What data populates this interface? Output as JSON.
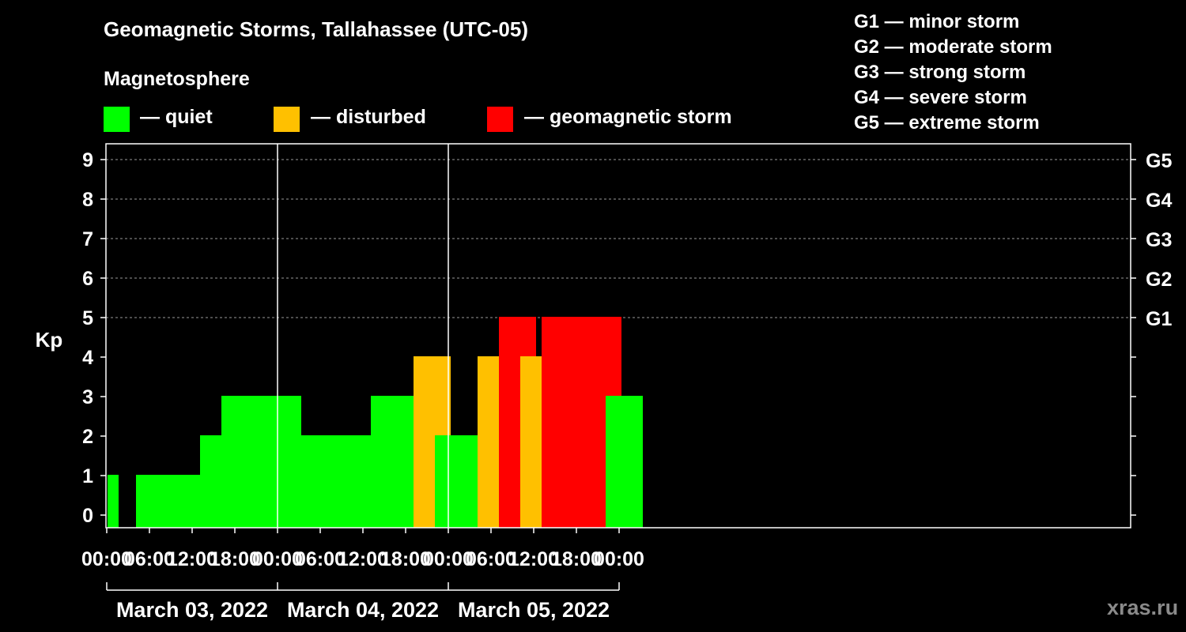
{
  "title": "Geomagnetic Storms, Tallahassee (UTC-05)",
  "magnetosphere": {
    "heading": "Magnetosphere",
    "items": [
      {
        "label": "— quiet",
        "color": "#00ff00"
      },
      {
        "label": "— disturbed",
        "color": "#ffc000"
      },
      {
        "label": "— geomagnetic storm",
        "color": "#ff0000"
      }
    ]
  },
  "g_levels": [
    "G1 — minor storm",
    "G2 — moderate storm",
    "G3 — strong storm",
    "G4 — severe storm",
    "G5 — extreme storm"
  ],
  "watermark": "xras.ru",
  "chart_data": {
    "type": "bar",
    "ylabel": "Kp",
    "ylim": [
      0,
      9
    ],
    "y_ticks": [
      0,
      1,
      2,
      3,
      4,
      5,
      6,
      7,
      8,
      9
    ],
    "right_ticks": [
      {
        "kp": 5,
        "label": "G1"
      },
      {
        "kp": 6,
        "label": "G2"
      },
      {
        "kp": 7,
        "label": "G3"
      },
      {
        "kp": 8,
        "label": "G4"
      },
      {
        "kp": 9,
        "label": "G5"
      }
    ],
    "grid": "horizontal dashed at Kp 5–9",
    "x_tick_labels": [
      "00:00",
      "06:00",
      "12:00",
      "18:00",
      "00:00",
      "06:00",
      "12:00",
      "18:00",
      "00:00",
      "06:00",
      "12:00",
      "18:00",
      "00:00"
    ],
    "days": [
      "March 03, 2022",
      "March 04, 2022",
      "March 05, 2022"
    ],
    "bars": [
      {
        "start": "2022-03-03 00:00",
        "kp": 1,
        "status": "quiet"
      },
      {
        "start": "2022-03-03 04:00",
        "kp": 1,
        "status": "quiet"
      },
      {
        "start": "2022-03-03 07:00",
        "kp": 1,
        "status": "quiet"
      },
      {
        "start": "2022-03-03 10:00",
        "kp": 1,
        "status": "quiet"
      },
      {
        "start": "2022-03-03 13:00",
        "kp": 2,
        "status": "quiet"
      },
      {
        "start": "2022-03-03 16:00",
        "kp": 3,
        "status": "quiet"
      },
      {
        "start": "2022-03-03 19:00",
        "kp": 3,
        "status": "quiet"
      },
      {
        "start": "2022-03-03 22:00",
        "kp": 3,
        "status": "quiet"
      },
      {
        "start": "2022-03-04 01:00",
        "kp": 2,
        "status": "quiet"
      },
      {
        "start": "2022-03-04 04:00",
        "kp": 2,
        "status": "quiet"
      },
      {
        "start": "2022-03-04 07:00",
        "kp": 2,
        "status": "quiet"
      },
      {
        "start": "2022-03-04 10:00",
        "kp": 2,
        "status": "quiet"
      },
      {
        "start": "2022-03-04 13:00",
        "kp": 3,
        "status": "quiet"
      },
      {
        "start": "2022-03-04 16:00",
        "kp": 3,
        "status": "quiet"
      },
      {
        "start": "2022-03-04 19:00",
        "kp": 4,
        "status": "disturbed"
      },
      {
        "start": "2022-03-04 22:00",
        "kp": 2,
        "status": "quiet"
      },
      {
        "start": "2022-03-05 01:00",
        "kp": 2,
        "status": "quiet"
      },
      {
        "start": "2022-03-05 04:00",
        "kp": 4,
        "status": "disturbed"
      },
      {
        "start": "2022-03-05 07:00",
        "kp": 5,
        "status": "storm"
      },
      {
        "start": "2022-03-05 10:00",
        "kp": 4,
        "status": "disturbed"
      },
      {
        "start": "2022-03-05 13:00",
        "kp": 5,
        "status": "storm"
      },
      {
        "start": "2022-03-05 16:00",
        "kp": 5,
        "status": "storm"
      },
      {
        "start": "2022-03-05 19:00",
        "kp": 5,
        "status": "storm"
      },
      {
        "start": "2022-03-05 22:00",
        "kp": 3,
        "status": "quiet"
      }
    ]
  }
}
